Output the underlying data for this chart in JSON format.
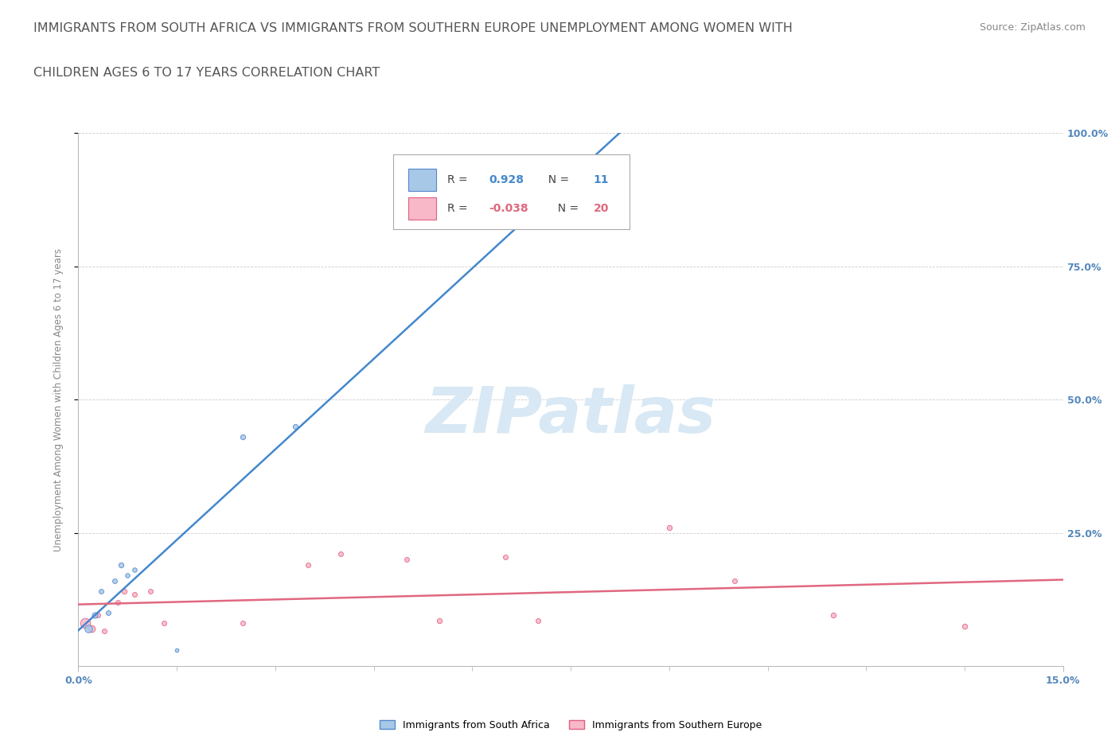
{
  "title_line1": "IMMIGRANTS FROM SOUTH AFRICA VS IMMIGRANTS FROM SOUTHERN EUROPE UNEMPLOYMENT AMONG WOMEN WITH",
  "title_line2": "CHILDREN AGES 6 TO 17 YEARS CORRELATION CHART",
  "source": "Source: ZipAtlas.com",
  "ylabel_label": "Unemployment Among Women with Children Ages 6 to 17 years",
  "legend_blue_r": "0.928",
  "legend_blue_n": "11",
  "legend_pink_r": "-0.038",
  "legend_pink_n": "20",
  "legend_label_blue": "Immigrants from South Africa",
  "legend_label_pink": "Immigrants from Southern Europe",
  "watermark": "ZIPatlas",
  "blue_fill": "#a8c8e8",
  "blue_edge": "#5588cc",
  "pink_fill": "#f8b8c8",
  "pink_edge": "#e06080",
  "blue_line_color": "#4488cc",
  "pink_line_color": "#e06880",
  "blue_r_color": "#4488cc",
  "pink_r_color": "#e06880",
  "sa_points": [
    [
      0.15,
      7.0,
      22
    ],
    [
      0.25,
      9.5,
      16
    ],
    [
      0.35,
      14.0,
      13
    ],
    [
      0.45,
      10.0,
      13
    ],
    [
      0.55,
      16.0,
      13
    ],
    [
      0.65,
      19.0,
      14
    ],
    [
      0.75,
      17.0,
      12
    ],
    [
      0.85,
      18.0,
      12
    ],
    [
      1.5,
      3.0,
      10
    ],
    [
      2.5,
      43.0,
      14
    ],
    [
      3.3,
      45.0,
      14
    ]
  ],
  "se_points": [
    [
      0.1,
      8.0,
      30
    ],
    [
      0.2,
      7.0,
      20
    ],
    [
      0.3,
      9.5,
      13
    ],
    [
      0.4,
      6.5,
      13
    ],
    [
      0.6,
      12.0,
      13
    ],
    [
      0.7,
      14.0,
      14
    ],
    [
      0.85,
      13.5,
      13
    ],
    [
      1.1,
      14.0,
      13
    ],
    [
      1.3,
      8.0,
      13
    ],
    [
      2.5,
      8.0,
      13
    ],
    [
      3.5,
      19.0,
      13
    ],
    [
      4.0,
      21.0,
      13
    ],
    [
      5.0,
      20.0,
      13
    ],
    [
      5.5,
      8.5,
      14
    ],
    [
      6.5,
      20.5,
      13
    ],
    [
      7.0,
      8.5,
      13
    ],
    [
      9.0,
      26.0,
      14
    ],
    [
      10.0,
      16.0,
      13
    ],
    [
      11.5,
      9.5,
      14
    ],
    [
      13.5,
      7.5,
      14
    ]
  ],
  "xlim": [
    0.0,
    15.0
  ],
  "ylim": [
    0.0,
    100.0
  ],
  "yticks": [
    25,
    50,
    75,
    100
  ],
  "ytick_labels": [
    "25.0%",
    "50.0%",
    "75.0%",
    "100.0%"
  ],
  "xticks_minor": [
    0.0,
    1.5,
    3.0,
    4.5,
    6.0,
    7.5,
    9.0,
    10.5,
    12.0,
    13.5,
    15.0
  ],
  "grid_color": "#cccccc",
  "bg_color": "#ffffff",
  "title_color": "#555555",
  "axis_color": "#bbbbbb",
  "tick_label_color": "#5588bb",
  "title_fontsize": 11.5,
  "source_fontsize": 9,
  "tick_fontsize": 9,
  "ylabel_fontsize": 8.5,
  "watermark_color": "#d8e8f4",
  "watermark_fontsize": 58,
  "legend_fontsize": 10
}
